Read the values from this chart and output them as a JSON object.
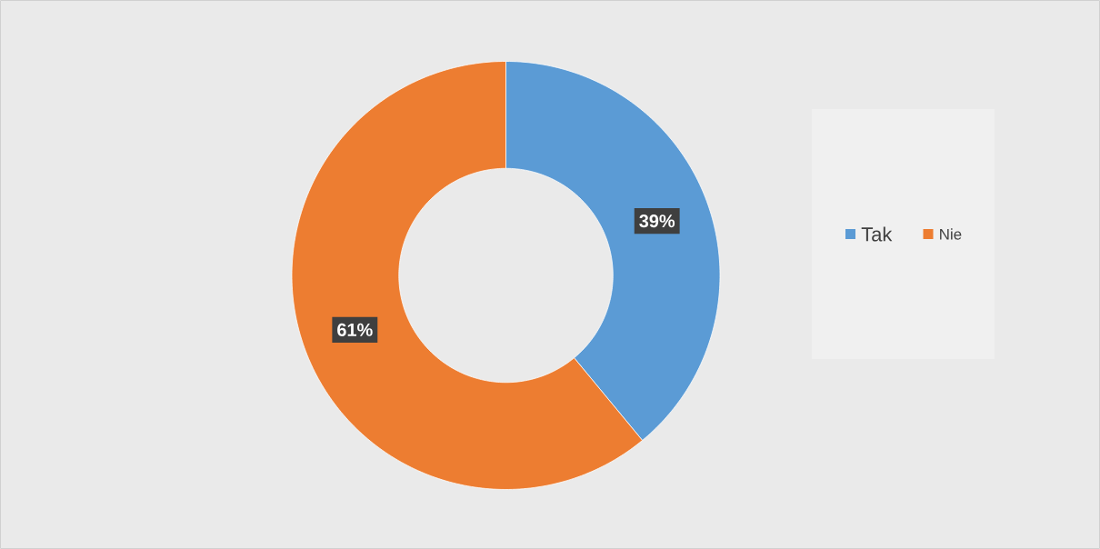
{
  "chart_data": {
    "type": "donut",
    "categories": [
      "Tak",
      "Nie"
    ],
    "values": [
      39,
      61
    ],
    "colors": [
      "#5b9bd5",
      "#ed7d31"
    ],
    "value_labels": [
      "39%",
      "61%"
    ],
    "legend": "right"
  }
}
